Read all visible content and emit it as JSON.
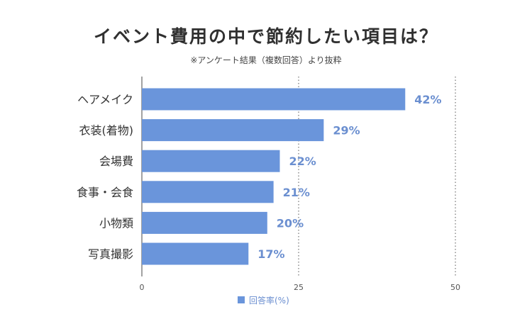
{
  "chart_data": {
    "type": "bar",
    "orientation": "horizontal",
    "title": "イベント費用の中で節約したい項目は？",
    "subtitle": "※アンケート結果（複数回答）より抜粋",
    "categories": [
      "ヘアメイク",
      "衣装(着物)",
      "会場費",
      "食事・会食",
      "小物類",
      "写真撮影"
    ],
    "series": [
      {
        "name": "回答率(%)",
        "values": [
          42,
          29,
          22,
          21,
          20,
          17
        ],
        "labels": [
          "42%",
          "29%",
          "22%",
          "21%",
          "20%",
          "17%"
        ],
        "color": "#6a95db"
      }
    ],
    "xlim": [
      0,
      50
    ],
    "xticks": [
      "0",
      "25",
      "50"
    ],
    "grid": "dotted-vertical",
    "legend": "bottom-center"
  }
}
